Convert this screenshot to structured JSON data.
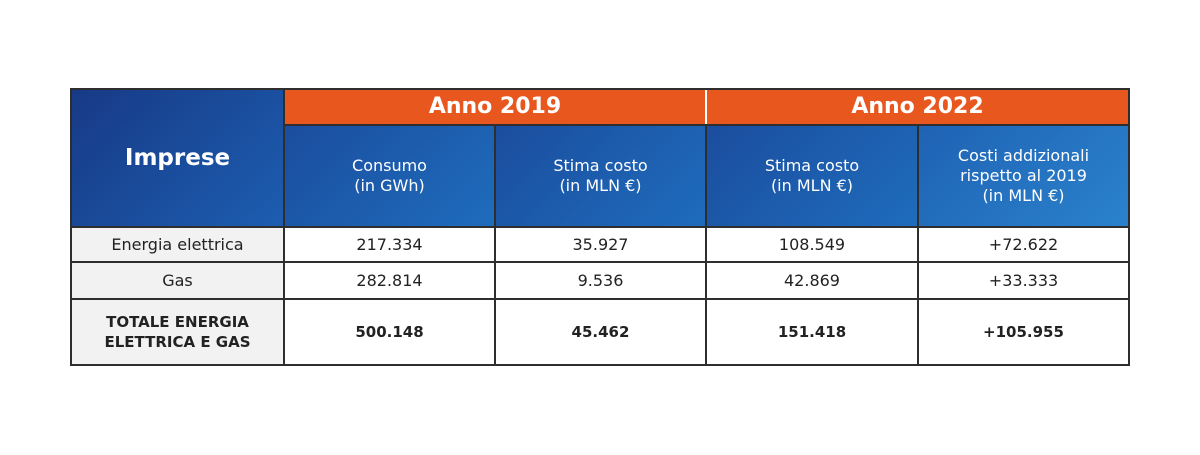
{
  "table": {
    "corner": "Imprese",
    "groups": [
      "Anno 2019",
      "Anno 2022"
    ],
    "columns": [
      [
        "Consumo",
        "(in GWh)"
      ],
      [
        "Stima costo",
        "(in MLN €)"
      ],
      [
        "Stima costo",
        "(in MLN €)"
      ],
      [
        "Costi addizionali",
        "rispetto al 2019",
        "(in MLN €)"
      ]
    ],
    "rows": [
      {
        "label": [
          "Energia elettrica"
        ],
        "cells": [
          "217.334",
          "35.927",
          "108.549",
          "+72.622"
        ]
      },
      {
        "label": [
          "Gas"
        ],
        "cells": [
          "282.814",
          "9.536",
          "42.869",
          "+33.333"
        ]
      },
      {
        "label": [
          "TOTALE ENERGIA",
          "ELETTRICA E GAS"
        ],
        "cells": [
          "500.148",
          "45.462",
          "151.418",
          "+105.955"
        ]
      }
    ]
  }
}
